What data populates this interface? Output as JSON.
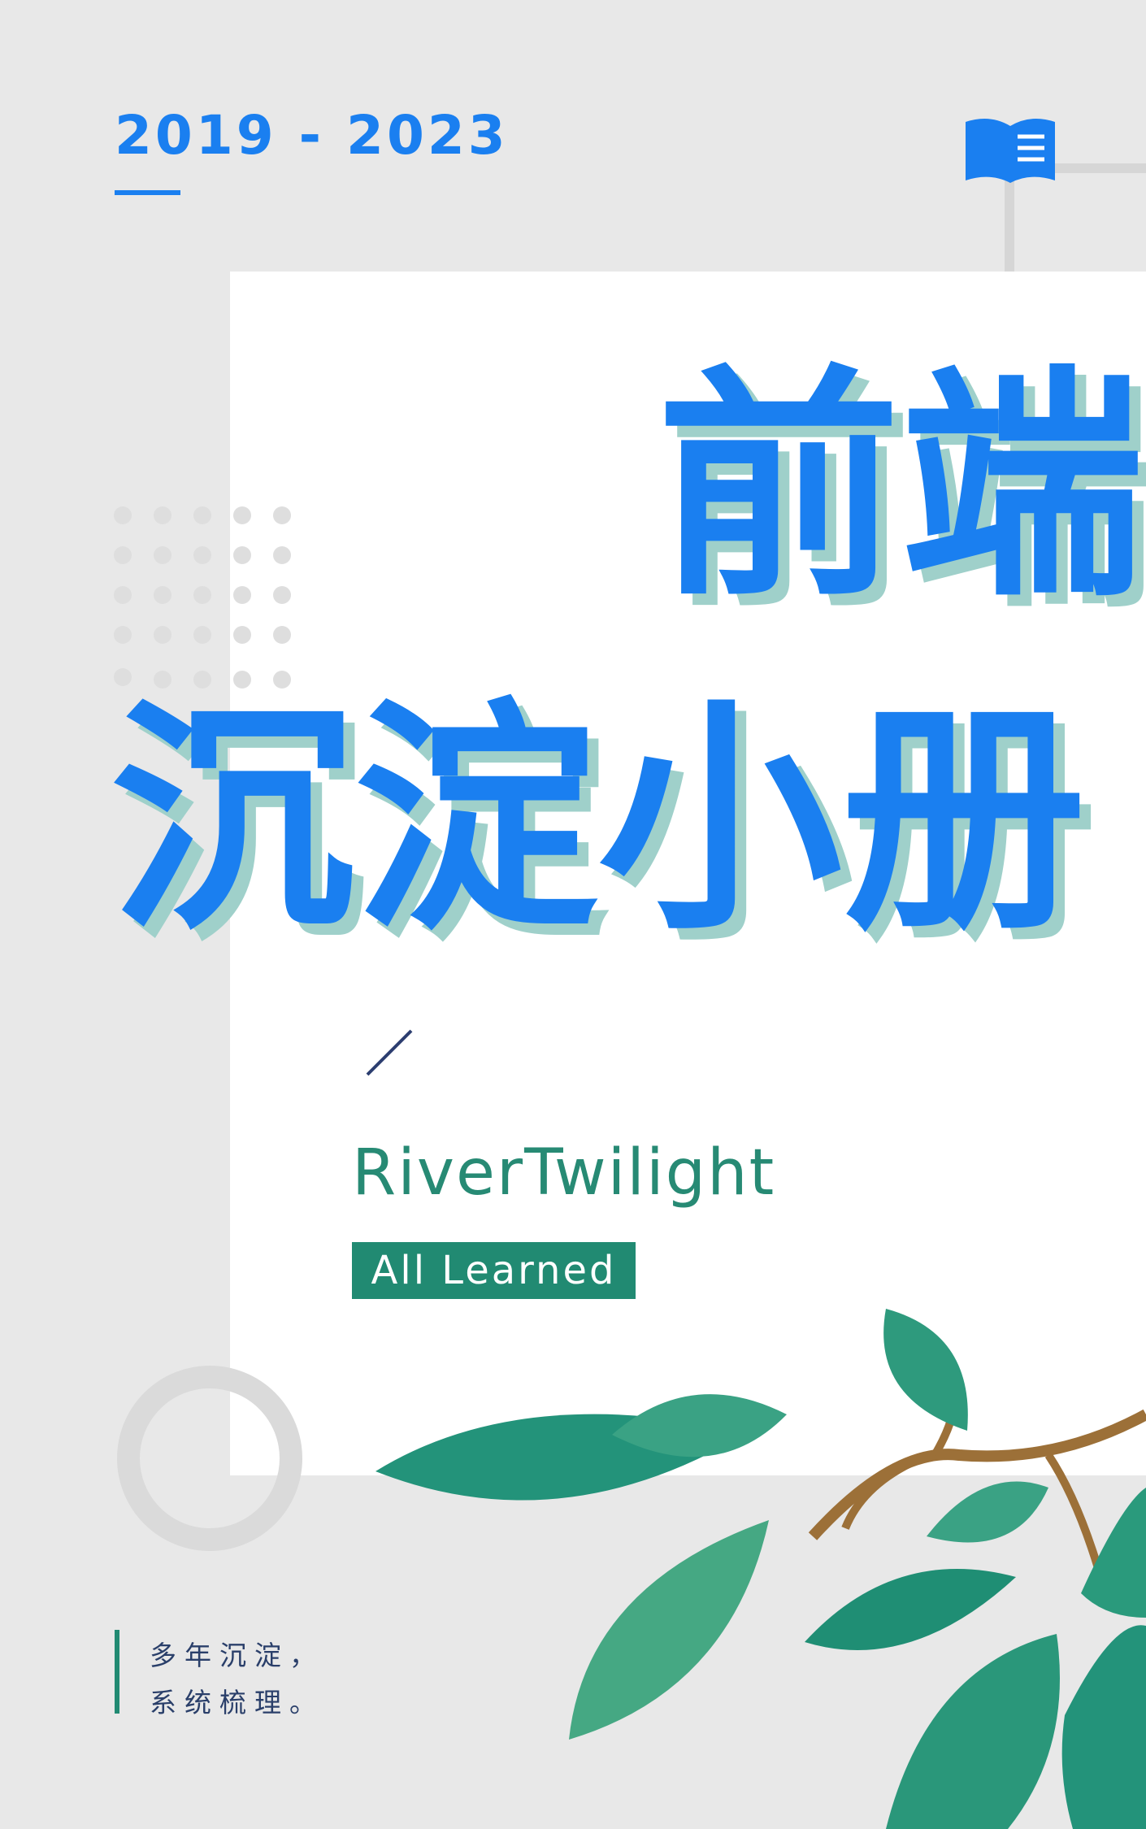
{
  "header": {
    "years": "2019 - 2023"
  },
  "title": {
    "line1": "前端",
    "line2": "沉淀小册"
  },
  "author": {
    "name": "RiverTwilight",
    "tag": "All Learned"
  },
  "footer": {
    "line1": "多年沉淀，",
    "line2": "系统梳理。"
  }
}
